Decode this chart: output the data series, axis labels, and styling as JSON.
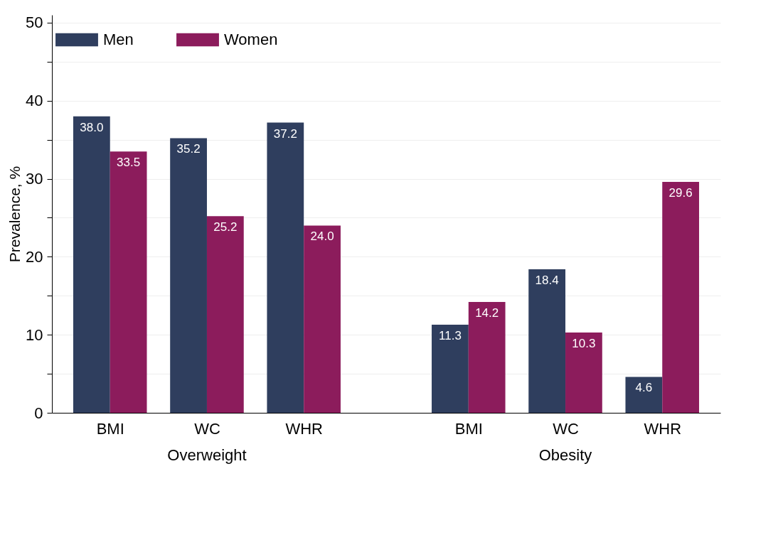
{
  "chart_data": {
    "type": "bar",
    "ylabel": "Prevalence, %",
    "categories": [
      "BMI",
      "WC",
      "WHR",
      "BMI",
      "WC",
      "WHR"
    ],
    "series": [
      {
        "name": "Men",
        "color": "#2f3e5e",
        "values": [
          38.0,
          35.2,
          37.2,
          11.3,
          18.4,
          4.6
        ],
        "value_labels": [
          "38.0",
          "35.2",
          "37.2",
          "11.3",
          "18.4",
          "4.6"
        ]
      },
      {
        "name": "Women",
        "color": "#8c1c5c",
        "values": [
          33.5,
          25.2,
          24.0,
          14.2,
          10.3,
          29.6
        ],
        "value_labels": [
          "33.5",
          "25.2",
          "24.0",
          "14.2",
          "10.3",
          "29.6"
        ]
      }
    ],
    "ylim": [
      0,
      51
    ],
    "yticks": [
      0,
      {
        "value": 5,
        "label": null
      },
      10,
      {
        "value": 15,
        "label": null
      },
      20,
      {
        "value": 25,
        "label": null
      },
      30,
      {
        "value": 35,
        "label": null
      },
      40,
      {
        "value": 45,
        "label": null
      },
      50
    ],
    "annotations": [
      "Overweight",
      "Obesity"
    ],
    "grid": "y",
    "legend": "top left"
  }
}
